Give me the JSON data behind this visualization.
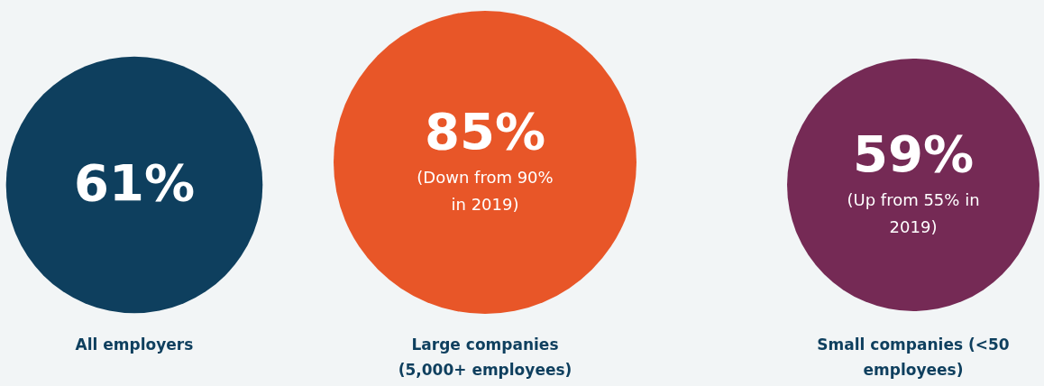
{
  "chart_data": {
    "type": "other",
    "categories": [
      "All employers",
      "Large companies (5,000+ employees)",
      "Small companies (<50 employees)"
    ],
    "values": [
      61,
      85,
      59
    ],
    "value_labels": [
      "61%",
      "85%",
      "59%"
    ],
    "colors": [
      "#0e3f5e",
      "#e85628",
      "#752a55"
    ],
    "annotations": [
      {
        "text": "(Down from 90% in 2019)",
        "x": "Large companies (5,000+ employees)"
      },
      {
        "text": "(Up from 55% in 2019)",
        "x": "Small companies (<50 employees)"
      }
    ]
  }
}
